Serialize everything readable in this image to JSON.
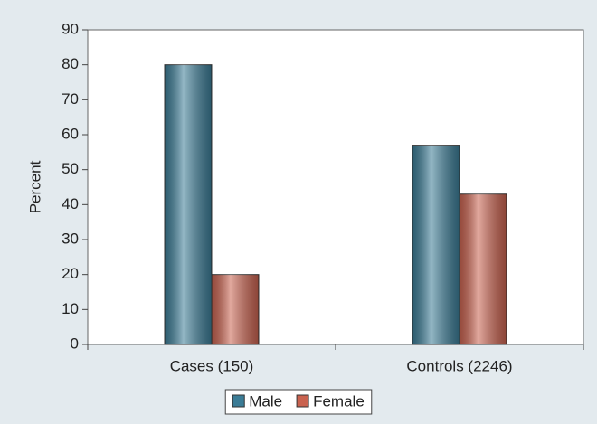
{
  "chart_data": {
    "type": "bar",
    "categories": [
      "Cases (150)",
      "Controls (2246)"
    ],
    "series": [
      {
        "name": "Male",
        "color": "#3b7c96",
        "values": [
          80,
          57
        ]
      },
      {
        "name": "Female",
        "color": "#c9624f",
        "values": [
          20,
          43
        ]
      }
    ],
    "ylabel": "Percent",
    "ylim": [
      0,
      90
    ],
    "yticks": [
      0,
      10,
      20,
      30,
      40,
      50,
      60,
      70,
      80,
      90
    ],
    "grid": false,
    "legend": "bottom"
  }
}
